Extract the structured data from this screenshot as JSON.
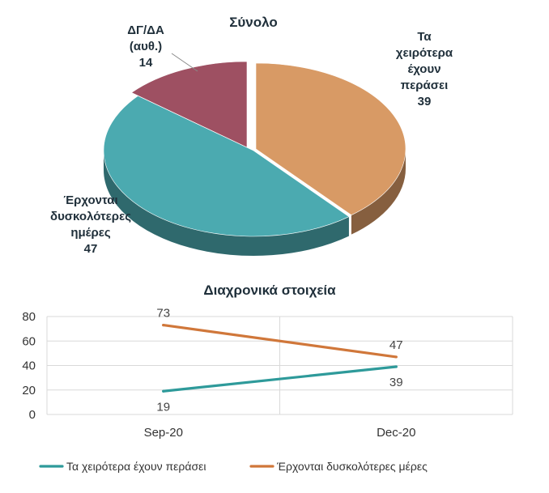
{
  "chart_data": [
    {
      "type": "pie",
      "title": "Σύνολο",
      "slices": [
        {
          "label": "Τα χειρότερα έχουν περάσει",
          "label_lines": [
            "Τα",
            "χειρότερα",
            "έχουν",
            "περάσει"
          ],
          "value": 39,
          "value_text": "39",
          "color": "#D89A65"
        },
        {
          "label": "Έρχονται δυσκολότερες ημέρες",
          "label_lines": [
            "Έρχονται",
            "δυσκολότερες",
            "ημέρες"
          ],
          "value": 47,
          "value_text": "47",
          "color": "#4BAAB0"
        },
        {
          "label": "ΔΓ/ΔΑ (αυθ.)",
          "label_lines": [
            "ΔΓ/ΔΑ",
            "(αυθ.)"
          ],
          "value": 14,
          "value_text": "14",
          "color": "#9E5062"
        }
      ]
    },
    {
      "type": "line",
      "title": "Διαχρονικά στοιχεία",
      "categories": [
        "Sep-20",
        "Dec-20"
      ],
      "ylim": [
        0,
        80
      ],
      "yticks": [
        "0",
        "20",
        "40",
        "60",
        "80"
      ],
      "grid": true,
      "legend_position": "bottom",
      "series": [
        {
          "name": "Τα χειρότερα έχουν περάσει",
          "values": [
            19,
            39
          ],
          "value_labels": [
            "19",
            "39"
          ],
          "color": "#2E9A9A"
        },
        {
          "name": "Έρχονται δυσκολότερες μέρες",
          "values": [
            73,
            47
          ],
          "value_labels": [
            "73",
            "47"
          ],
          "color": "#D0773A"
        }
      ]
    }
  ]
}
